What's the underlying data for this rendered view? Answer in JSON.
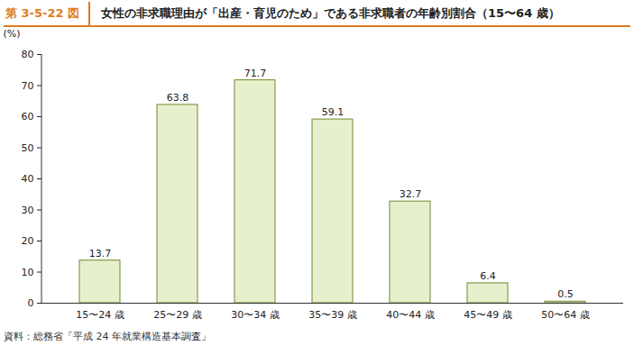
{
  "chart_data": {
    "type": "bar",
    "figure_label": "第 3-5-22 図",
    "title": "女性の非求職理由が「出産・育児のため」である非求職者の年齢別割合（15〜64 歳）",
    "y_label": "(%)",
    "source": "資料：総務省「平成 24 年就業構造基本調査」",
    "categories": [
      "15〜24 歳",
      "25〜29 歳",
      "30〜34 歳",
      "35〜39 歳",
      "40〜44 歳",
      "45〜49 歳",
      "50〜64 歳"
    ],
    "values": [
      13.7,
      63.8,
      71.7,
      59.1,
      32.7,
      6.4,
      0.5
    ],
    "color": "#e7f0cd",
    "ylim": [
      0,
      80
    ],
    "yticks": [
      0,
      10,
      20,
      30,
      40,
      50,
      60,
      70,
      80
    ],
    "grid": false,
    "data_labels": true
  }
}
